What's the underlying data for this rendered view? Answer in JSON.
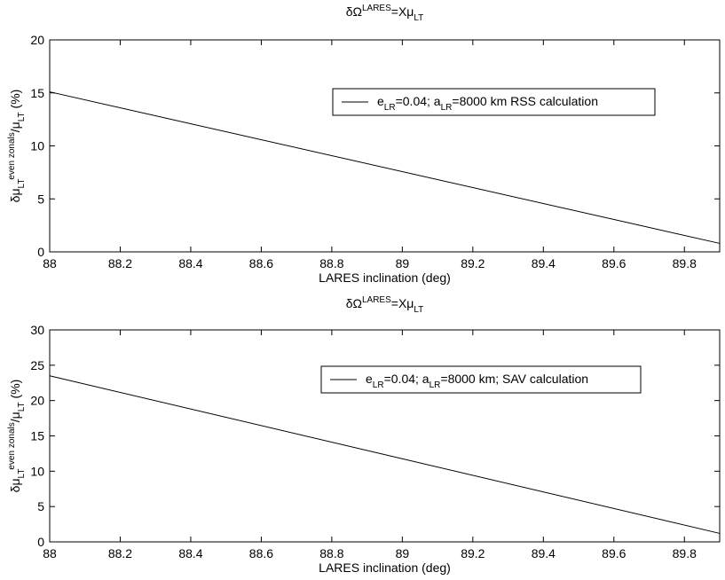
{
  "chart_data": [
    {
      "type": "line",
      "title": [
        {
          "text": "δΩ"
        },
        {
          "text": "LARES",
          "script": "sup"
        },
        {
          "text": "=Xμ"
        },
        {
          "text": "LT",
          "script": "sub"
        }
      ],
      "xlabel": "LARES inclination (deg)",
      "ylabel": [
        {
          "text": "δμ"
        },
        {
          "text": "LT",
          "script": "sub"
        },
        {
          "text": "even zonals",
          "script": "sup"
        },
        {
          "text": "/μ"
        },
        {
          "text": "LT",
          "script": "sub"
        },
        {
          "text": " (%)"
        }
      ],
      "x": [
        88,
        89.9
      ],
      "series": [
        {
          "name": [
            {
              "text": "e"
            },
            {
              "text": "LR",
              "script": "sub"
            },
            {
              "text": "=0.04; a"
            },
            {
              "text": "LR",
              "script": "sub"
            },
            {
              "text": "=8000 km RSS calculation"
            }
          ],
          "color": "#000000",
          "values": [
            15.1,
            0.8
          ]
        }
      ],
      "xlim": [
        88,
        89.9
      ],
      "xticks": [
        88,
        88.2,
        88.4,
        88.6,
        88.8,
        89,
        89.2,
        89.4,
        89.6,
        89.8
      ],
      "ylim": [
        0,
        20
      ],
      "yticks": [
        0,
        5,
        10,
        15,
        20
      ],
      "grid": false
    },
    {
      "type": "line",
      "title": [
        {
          "text": "δΩ"
        },
        {
          "text": "LARES",
          "script": "sup"
        },
        {
          "text": "=Xμ"
        },
        {
          "text": "LT",
          "script": "sub"
        }
      ],
      "xlabel": "LARES inclination (deg)",
      "ylabel": [
        {
          "text": "δμ"
        },
        {
          "text": "LT",
          "script": "sub"
        },
        {
          "text": "even zonals",
          "script": "sup"
        },
        {
          "text": "/μ"
        },
        {
          "text": "LT",
          "script": "sub"
        },
        {
          "text": " (%)"
        }
      ],
      "x": [
        88,
        89.9
      ],
      "series": [
        {
          "name": [
            {
              "text": "e"
            },
            {
              "text": "LR",
              "script": "sub"
            },
            {
              "text": "=0.04; a"
            },
            {
              "text": "LR",
              "script": "sub"
            },
            {
              "text": "=8000 km; SAV calculation"
            }
          ],
          "color": "#000000",
          "values": [
            23.5,
            1.2
          ]
        }
      ],
      "xlim": [
        88,
        89.9
      ],
      "xticks": [
        88,
        88.2,
        88.4,
        88.6,
        88.8,
        89,
        89.2,
        89.4,
        89.6,
        89.8
      ],
      "ylim": [
        0,
        30
      ],
      "yticks": [
        0,
        5,
        10,
        15,
        20,
        25,
        30
      ],
      "grid": false
    }
  ]
}
